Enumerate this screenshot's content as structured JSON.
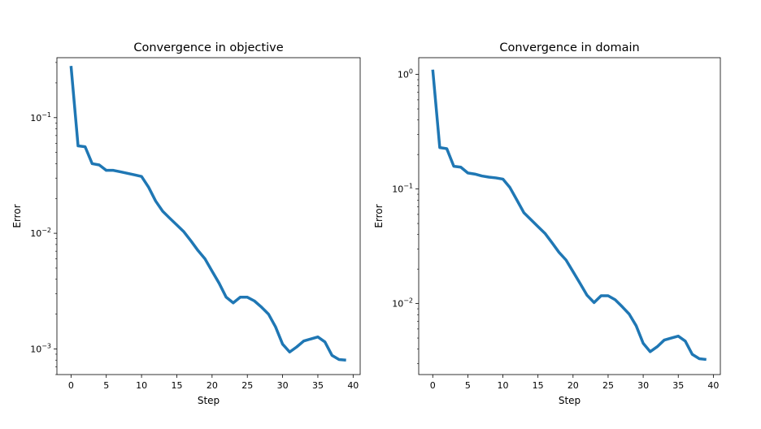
{
  "chart_data": [
    {
      "type": "line",
      "title": "Convergence in objective",
      "xlabel": "Step",
      "ylabel": "Error",
      "yscale": "log",
      "xlim": [
        -2,
        41
      ],
      "ylim": [
        0.0006,
        0.33
      ],
      "xticks": [
        0,
        5,
        10,
        15,
        20,
        25,
        30,
        35,
        40
      ],
      "yticks": [
        {
          "base": "10",
          "exp": "−3",
          "value": 0.001
        },
        {
          "base": "10",
          "exp": "−2",
          "value": 0.01
        },
        {
          "base": "10",
          "exp": "−1",
          "value": 0.1
        }
      ],
      "grid": false,
      "line_color": "#1f77b4",
      "series": [
        {
          "x": [
            0,
            1,
            2,
            3,
            4,
            5,
            6,
            7,
            8,
            9,
            10,
            11,
            12,
            13,
            14,
            15,
            16,
            17,
            18,
            19,
            20,
            21,
            22,
            23,
            24,
            25,
            26,
            27,
            28,
            29,
            30,
            31,
            32,
            33,
            34,
            35,
            36,
            37,
            38,
            39
          ],
          "values": [
            0.28,
            0.057,
            0.056,
            0.04,
            0.039,
            0.035,
            0.035,
            0.034,
            0.033,
            0.032,
            0.031,
            0.025,
            0.019,
            0.0155,
            0.0135,
            0.0118,
            0.0103,
            0.0086,
            0.0071,
            0.006,
            0.0047,
            0.0037,
            0.0028,
            0.0025,
            0.0028,
            0.0028,
            0.0026,
            0.0023,
            0.002,
            0.00155,
            0.0011,
            0.00094,
            0.00104,
            0.00117,
            0.00122,
            0.00127,
            0.00115,
            0.00088,
            0.00081,
            0.0008
          ]
        }
      ]
    },
    {
      "type": "line",
      "title": "Convergence in domain",
      "xlabel": "Step",
      "ylabel": "Error",
      "yscale": "log",
      "xlim": [
        -2,
        41
      ],
      "ylim": [
        0.0024,
        1.4
      ],
      "xticks": [
        0,
        5,
        10,
        15,
        20,
        25,
        30,
        35,
        40
      ],
      "yticks": [
        {
          "base": "10",
          "exp": "−2",
          "value": 0.01
        },
        {
          "base": "10",
          "exp": "−1",
          "value": 0.1
        },
        {
          "base": "10",
          "exp": "0",
          "value": 1
        }
      ],
      "grid": false,
      "line_color": "#1f77b4",
      "series": [
        {
          "x": [
            0,
            1,
            2,
            3,
            4,
            5,
            6,
            7,
            8,
            9,
            10,
            11,
            12,
            13,
            14,
            15,
            16,
            17,
            18,
            19,
            20,
            21,
            22,
            23,
            24,
            25,
            26,
            27,
            28,
            29,
            30,
            31,
            32,
            33,
            34,
            35,
            36,
            37,
            38,
            39
          ],
          "values": [
            1.1,
            0.23,
            0.225,
            0.158,
            0.155,
            0.138,
            0.135,
            0.13,
            0.127,
            0.125,
            0.122,
            0.103,
            0.08,
            0.062,
            0.054,
            0.047,
            0.041,
            0.034,
            0.028,
            0.024,
            0.019,
            0.015,
            0.0118,
            0.0102,
            0.0117,
            0.0117,
            0.0108,
            0.0094,
            0.0081,
            0.0064,
            0.0045,
            0.0038,
            0.0042,
            0.0048,
            0.005,
            0.0052,
            0.0047,
            0.0036,
            0.0033,
            0.00325
          ]
        }
      ]
    }
  ]
}
